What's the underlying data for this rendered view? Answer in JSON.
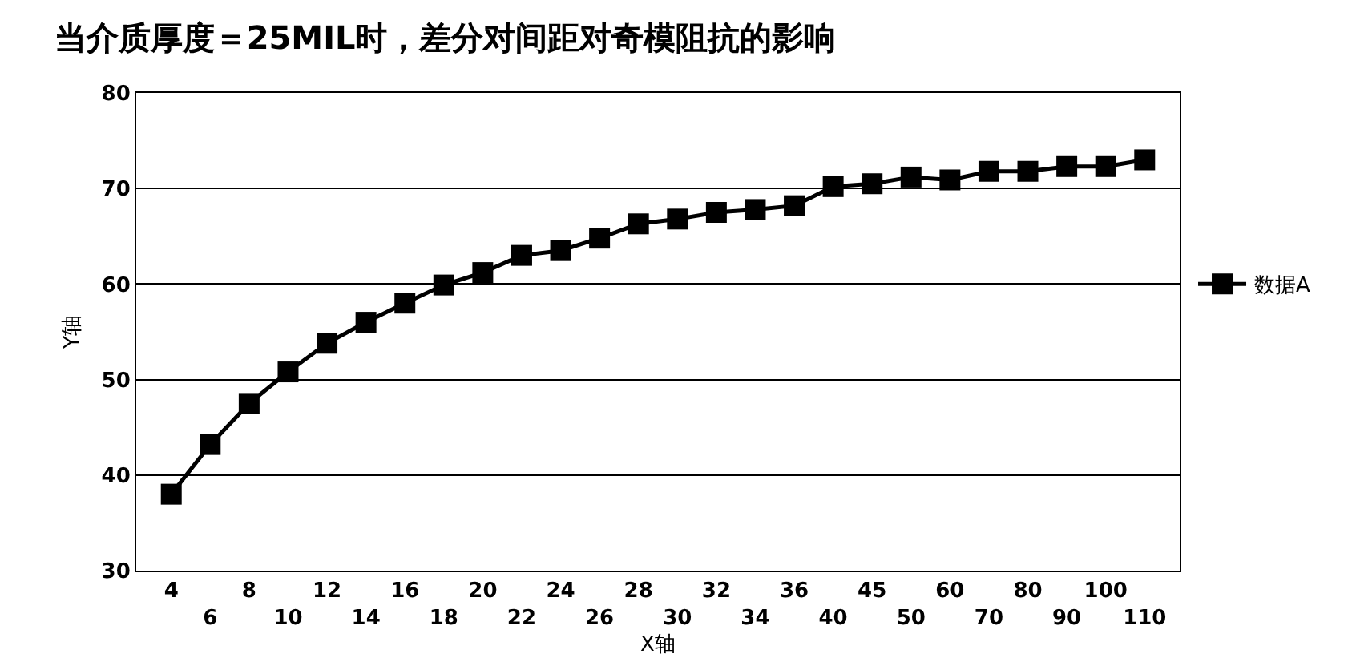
{
  "chart_data": {
    "type": "line",
    "title": "当介质厚度＝25MIL时，差分对间距对奇模阻抗的影响",
    "xlabel": "X轴",
    "ylabel": "Y轴",
    "categories": [
      "4",
      "6",
      "8",
      "10",
      "12",
      "14",
      "16",
      "18",
      "20",
      "22",
      "24",
      "26",
      "28",
      "30",
      "32",
      "34",
      "36",
      "40",
      "45",
      "50",
      "60",
      "70",
      "80",
      "90",
      "100",
      "110"
    ],
    "series": [
      {
        "name": "数据A",
        "color": "#000000",
        "values": [
          38,
          43.2,
          47.5,
          50.8,
          53.8,
          56,
          58,
          59.9,
          61.2,
          63,
          63.5,
          64.8,
          66.3,
          66.8,
          67.5,
          67.8,
          68.2,
          70.2,
          70.5,
          71.2,
          70.9,
          71.8,
          71.8,
          72.3,
          72.3,
          73
        ]
      }
    ],
    "ylim": [
      30,
      80
    ],
    "yticks": [
      30,
      40,
      50,
      60,
      70,
      80
    ],
    "grid": "y",
    "legend": "right",
    "marker": "square",
    "line_style": "solid"
  }
}
